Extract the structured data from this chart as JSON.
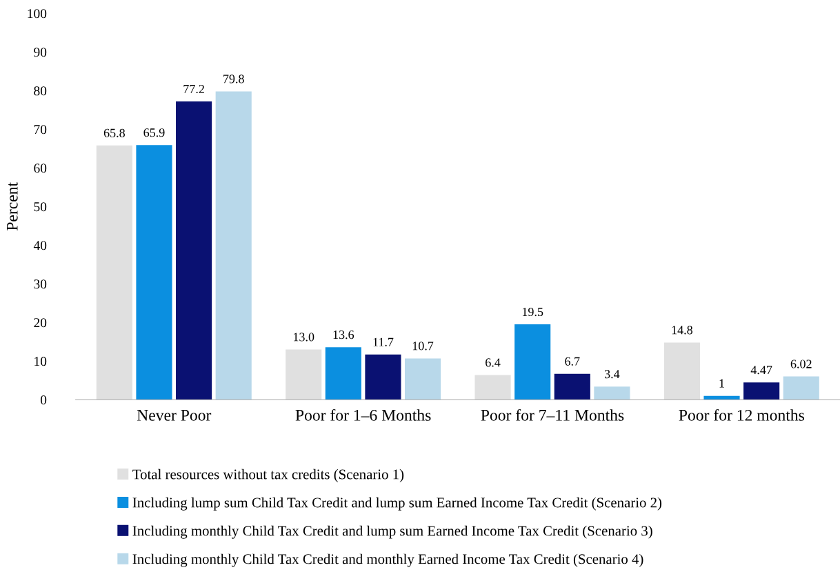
{
  "chart_data": {
    "type": "bar",
    "ylabel": "Percent",
    "categories": [
      "Never Poor",
      "Poor for 1–6 Months",
      "Poor for 7–11 Months",
      "Poor for 12 months"
    ],
    "series": [
      {
        "name": "Total resources without tax credits (Scenario 1)",
        "color": "#e0e0e0",
        "values": [
          65.8,
          13.0,
          6.4,
          14.8
        ],
        "value_labels": [
          "65.8",
          "13.0",
          "6.4",
          "14.8"
        ]
      },
      {
        "name": "Including lump sum Child Tax Credit and lump sum Earned Income Tax Credit (Scenario 2)",
        "color": "#0b8fe0",
        "values": [
          65.9,
          13.6,
          19.5,
          1
        ],
        "value_labels": [
          "65.9",
          "13.6",
          "19.5",
          "1"
        ]
      },
      {
        "name": "Including monthly Child Tax Credit and lump sum Earned Income Tax Credit (Scenario 3)",
        "color": "#0a1172",
        "values": [
          77.2,
          11.7,
          6.7,
          4.47
        ],
        "value_labels": [
          "77.2",
          "11.7",
          "6.7",
          "4.47"
        ]
      },
      {
        "name": "Including monthly Child Tax Credit and monthly Earned Income Tax Credit (Scenario 4)",
        "color": "#b8d8ea",
        "values": [
          79.8,
          10.7,
          3.4,
          6.02
        ],
        "value_labels": [
          "79.8",
          "10.7",
          "3.4",
          "6.02"
        ]
      }
    ],
    "ylim": [
      0,
      100
    ],
    "yticks": [
      0,
      10,
      20,
      30,
      40,
      50,
      60,
      70,
      80,
      90,
      100
    ],
    "grid": false,
    "legend": "bottom"
  }
}
